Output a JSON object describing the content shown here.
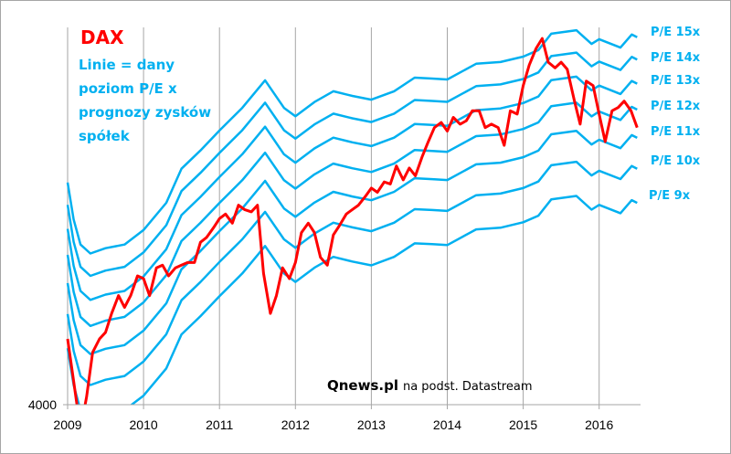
{
  "chart_data": {
    "type": "line",
    "title": "DAX",
    "annotation": [
      "Linie = dany",
      "poziom P/E x",
      "prognozy zysków",
      "spółek"
    ],
    "source": {
      "brand": "Qnews.pl",
      "rest": "na podst. Datastream"
    },
    "x_ticks": [
      "2009",
      "2010",
      "2011",
      "2012",
      "2013",
      "2014",
      "2015",
      "2016"
    ],
    "xlim": [
      2009.0,
      2016.55
    ],
    "y_scale": "log",
    "y_ticks": [
      "4000"
    ],
    "ylim": [
      4000,
      12800
    ],
    "colors": {
      "dax": "#ff0000",
      "pe_lines": "#00b0f0"
    },
    "pe_multiples": [
      15,
      14,
      13,
      12,
      11,
      10,
      9
    ],
    "pe_labels": [
      "P/E 15x",
      "P/E 14x",
      "P/E 13x",
      "P/E 12x",
      "P/E 11x",
      "P/E 10x",
      "P/E 9x"
    ],
    "forward_eps": {
      "x": [
        2009.0,
        2009.08,
        2009.17,
        2009.3,
        2009.5,
        2009.75,
        2010.0,
        2010.3,
        2010.5,
        2010.75,
        2011.0,
        2011.3,
        2011.6,
        2011.85,
        2012.0,
        2012.25,
        2012.5,
        2012.75,
        2013.0,
        2013.3,
        2013.57,
        2013.8,
        2014.0,
        2014.38,
        2014.7,
        2015.0,
        2015.2,
        2015.37,
        2015.7,
        2015.9,
        2016.0,
        2016.28,
        2016.43,
        2016.5
      ],
      "values": [
        529,
        472,
        437,
        425,
        432,
        437,
        457,
        497,
        552,
        584,
        621,
        666,
        725,
        666,
        649,
        678,
        701,
        691,
        683,
        701,
        731,
        729,
        727,
        763,
        767,
        780,
        796,
        837,
        846,
        811,
        823,
        802,
        835,
        828
      ]
    },
    "dax": {
      "name": "DAX",
      "x": [
        2009.0,
        2009.08,
        2009.17,
        2009.25,
        2009.33,
        2009.42,
        2009.5,
        2009.58,
        2009.67,
        2009.75,
        2009.83,
        2009.92,
        2010.0,
        2010.08,
        2010.17,
        2010.25,
        2010.33,
        2010.42,
        2010.5,
        2010.58,
        2010.67,
        2010.75,
        2010.83,
        2010.92,
        2011.0,
        2011.08,
        2011.17,
        2011.25,
        2011.33,
        2011.42,
        2011.5,
        2011.58,
        2011.67,
        2011.75,
        2011.83,
        2011.92,
        2012.0,
        2012.08,
        2012.17,
        2012.25,
        2012.33,
        2012.42,
        2012.5,
        2012.58,
        2012.67,
        2012.75,
        2012.83,
        2012.92,
        2013.0,
        2013.08,
        2013.17,
        2013.25,
        2013.33,
        2013.42,
        2013.5,
        2013.58,
        2013.67,
        2013.75,
        2013.83,
        2013.92,
        2014.0,
        2014.08,
        2014.17,
        2014.25,
        2014.33,
        2014.42,
        2014.5,
        2014.58,
        2014.67,
        2014.75,
        2014.83,
        2014.92,
        2015.0,
        2015.08,
        2015.17,
        2015.25,
        2015.33,
        2015.42,
        2015.5,
        2015.58,
        2015.67,
        2015.75,
        2015.83,
        2015.92,
        2016.0,
        2016.08,
        2016.17,
        2016.25,
        2016.33,
        2016.42,
        2016.5
      ],
      "values": [
        4900,
        4300,
        3700,
        4100,
        4700,
        4900,
        5000,
        5300,
        5600,
        5400,
        5600,
        5950,
        5900,
        5600,
        6100,
        6150,
        5950,
        6100,
        6150,
        6200,
        6200,
        6600,
        6700,
        6900,
        7100,
        7200,
        7000,
        7400,
        7300,
        7250,
        7400,
        6000,
        5300,
        5600,
        6100,
        5900,
        6200,
        6800,
        7000,
        6800,
        6300,
        6150,
        6750,
        6950,
        7200,
        7300,
        7400,
        7600,
        7800,
        7700,
        7950,
        7900,
        8350,
        8000,
        8300,
        8100,
        8600,
        9000,
        9400,
        9550,
        9300,
        9700,
        9500,
        9600,
        9900,
        9900,
        9400,
        9500,
        9400,
        8900,
        9900,
        9800,
        10700,
        11400,
        12000,
        12375,
        11500,
        11300,
        11500,
        11250,
        10250,
        9500,
        10850,
        10700,
        9800,
        9000,
        9900,
        10000,
        10200,
        9900,
        9400
      ]
    }
  }
}
